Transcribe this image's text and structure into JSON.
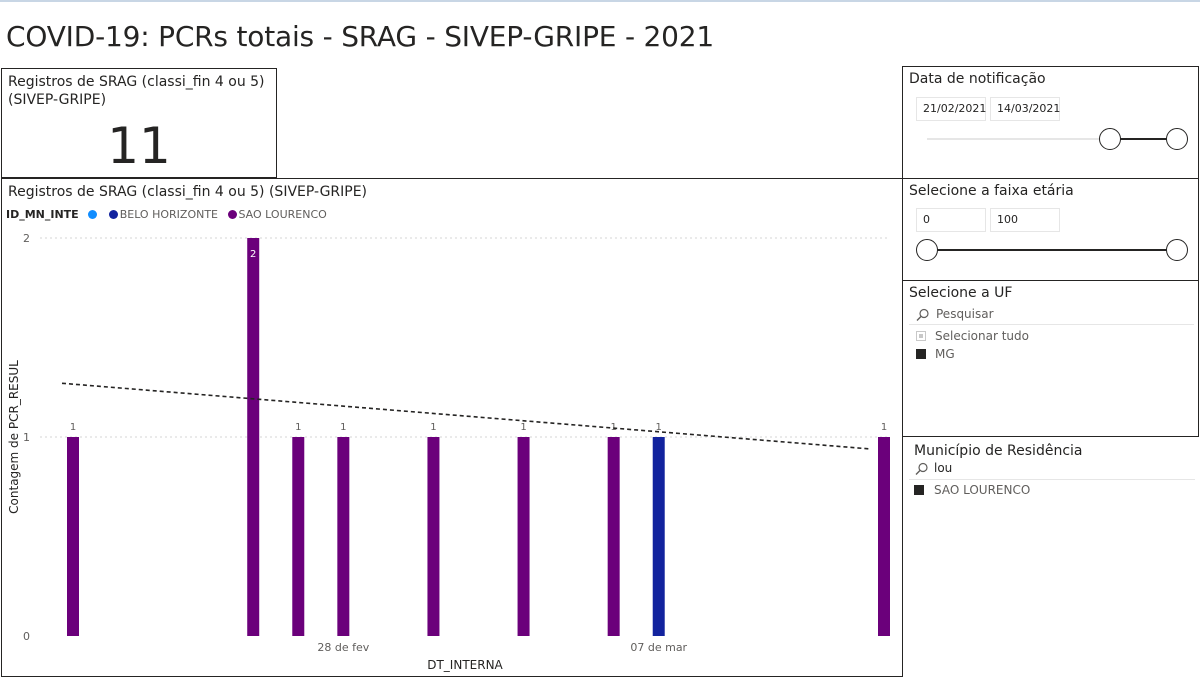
{
  "page": {
    "title": "COVID-19: PCRs totais - SRAG - SIVEP-GRIPE - 2021"
  },
  "kpi": {
    "title": "Registros de SRAG (classi_fin 4 ou 5) (SIVEP-GRIPE)",
    "value": "11"
  },
  "date_filter": {
    "title": "Data de notificação",
    "start": "21/02/2021",
    "end": "14/03/2021",
    "range_start_fraction": 0.73,
    "range_end_fraction": 1.0
  },
  "age_filter": {
    "title": "Selecione a faixa etária",
    "min": "0",
    "max": "100",
    "range_start_fraction": 0.0,
    "range_end_fraction": 1.0
  },
  "uf_filter": {
    "title": "Selecione a UF",
    "search_placeholder": "Pesquisar",
    "items": [
      {
        "label": "Selecionar tudo",
        "state": "partial"
      },
      {
        "label": "MG",
        "state": "checked"
      }
    ]
  },
  "municipio_filter": {
    "title": "Município de Residência",
    "search_value": "lou",
    "items": [
      {
        "label": "SAO LOURENCO",
        "state": "checked"
      }
    ]
  },
  "chart": {
    "title": "Registros de SRAG (classi_fin 4 ou 5) (SIVEP-GRIPE)",
    "legend_title": "ID_MN_INTE",
    "legend": [
      {
        "label": "",
        "color": "#118dff"
      },
      {
        "label": "BELO HORIZONTE",
        "color": "#12239e"
      },
      {
        "label": "SAO LOURENCO",
        "color": "#6b007b"
      }
    ],
    "colors": {
      "SAO LOURENCO": "#6b007b",
      "BELO HORIZONTE": "#12239e"
    }
  },
  "chart_data": {
    "type": "bar",
    "title": "Registros de SRAG (classi_fin 4 ou 5) (SIVEP-GRIPE)",
    "xlabel": "DT_INTERNA",
    "ylabel": "Contagem de PCR_RESUL",
    "ylim": [
      0,
      2
    ],
    "yticks": [
      0,
      1,
      2
    ],
    "xlim": [
      "2021-02-22",
      "2021-03-12"
    ],
    "xticks": [
      {
        "date": "2021-02-28",
        "label": "28 de fev"
      },
      {
        "date": "2021-03-07",
        "label": "07 de mar"
      }
    ],
    "grid": true,
    "legend_position": "top-left",
    "points": [
      {
        "date": "2021-02-22",
        "value": 1,
        "series": "SAO LOURENCO"
      },
      {
        "date": "2021-02-26",
        "value": 2,
        "series": "SAO LOURENCO"
      },
      {
        "date": "2021-02-27",
        "value": 1,
        "series": "SAO LOURENCO"
      },
      {
        "date": "2021-02-28",
        "value": 1,
        "series": "SAO LOURENCO"
      },
      {
        "date": "2021-03-02",
        "value": 1,
        "series": "SAO LOURENCO"
      },
      {
        "date": "2021-03-04",
        "value": 1,
        "series": "SAO LOURENCO"
      },
      {
        "date": "2021-03-06",
        "value": 1,
        "series": "SAO LOURENCO"
      },
      {
        "date": "2021-03-07",
        "value": 1,
        "series": "BELO HORIZONTE"
      },
      {
        "date": "2021-03-12",
        "value": 1,
        "series": "SAO LOURENCO"
      }
    ],
    "trendline": {
      "style": "dashed",
      "start": 1.27,
      "end": 0.94
    }
  }
}
